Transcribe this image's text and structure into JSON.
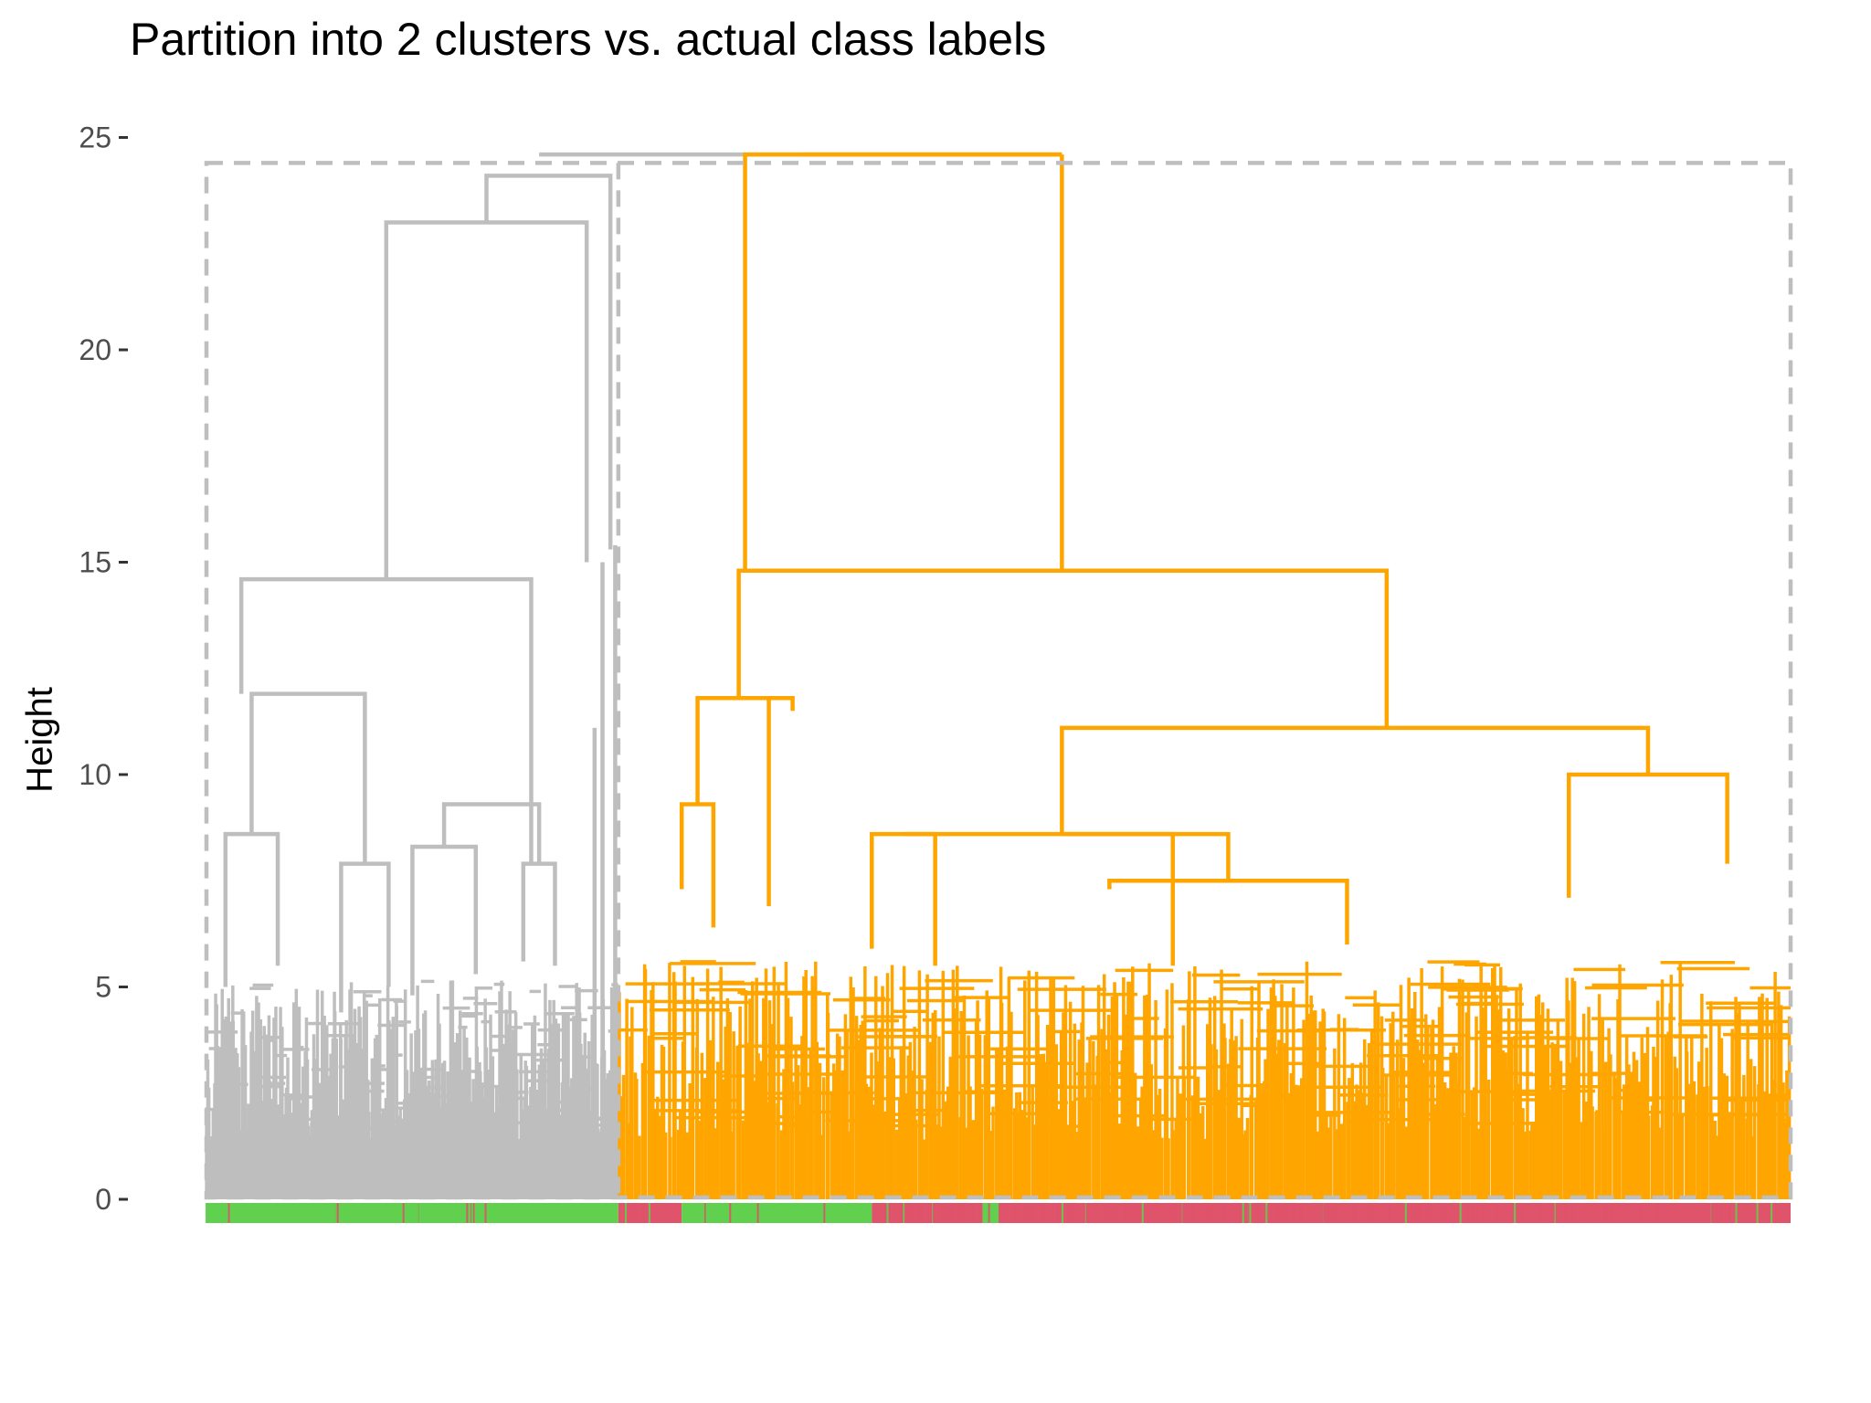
{
  "chart_data": {
    "type": "dendrogram",
    "title": "Partition into 2 clusters vs. actual class labels",
    "xlabel": "",
    "ylabel": "Height",
    "ylim": [
      0,
      25
    ],
    "y_ticks": [
      0,
      5,
      10,
      15,
      20,
      25
    ],
    "grid": false,
    "legend": "none",
    "cut_height": 24.4,
    "root_height": 24.6,
    "clusters": [
      {
        "cluster": 1,
        "color": "#bebebe",
        "leaf_span": [
          0,
          0.26
        ],
        "merge_heights": [
          24.1,
          23.0,
          14.6,
          11.9,
          9.3,
          8.6,
          7.9,
          7.9,
          5.6,
          5.3
        ]
      },
      {
        "cluster": 2,
        "color": "#ffa500",
        "leaf_span": [
          0.26,
          1.0
        ],
        "merge_heights": [
          24.6,
          14.8,
          11.8,
          11.1,
          10.0,
          9.3,
          8.6,
          7.9,
          7.5,
          6.6,
          5.5,
          5.2
        ]
      }
    ],
    "label_colors": {
      "class_a": "#61d04f",
      "class_b": "#df536b"
    },
    "leaf_class_segments": [
      {
        "span": [
          0.0,
          0.26
        ],
        "class": "class_a"
      },
      {
        "span": [
          0.26,
          0.3
        ],
        "class": "class_b"
      },
      {
        "span": [
          0.3,
          0.42
        ],
        "class": "class_a"
      },
      {
        "span": [
          0.42,
          0.49
        ],
        "class": "class_b"
      },
      {
        "span": [
          0.49,
          0.5
        ],
        "class": "class_a"
      },
      {
        "span": [
          0.5,
          1.0
        ],
        "class": "class_b"
      }
    ]
  }
}
